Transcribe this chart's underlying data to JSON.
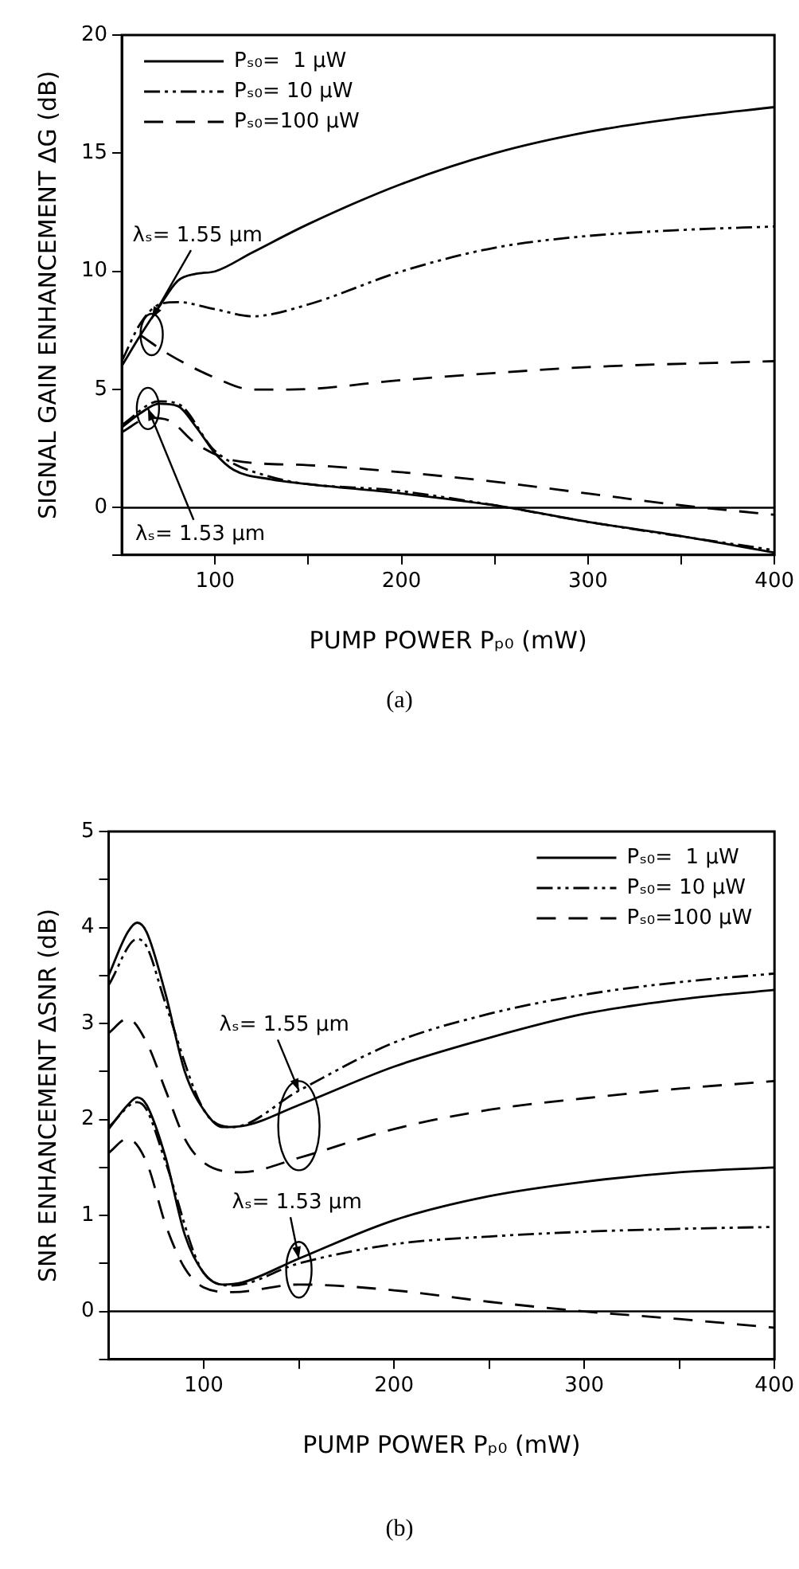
{
  "chart_data": [
    {
      "type": "line",
      "xlabel": "PUMP POWER Pₚ₀ (mW)",
      "ylabel": "SIGNAL GAIN ENHANCEMENT ΔG (dB)",
      "xlim": [
        50,
        400
      ],
      "xticks": [
        100,
        {
          "value": 150,
          "label": null
        },
        200,
        {
          "value": 250,
          "label": null
        },
        300,
        {
          "value": 350,
          "label": null
        },
        400
      ],
      "ylim": [
        -2,
        20
      ],
      "yticks": [
        {
          "value": -2,
          "label": null
        },
        0,
        5,
        10,
        15,
        20
      ],
      "legend": "top left",
      "grid": false,
      "ref_lines": [
        {
          "axis": "y",
          "value": 0,
          "color": "#000000"
        }
      ],
      "annotations": [
        {
          "text": "λₛ= 1.55 μm",
          "x": 66,
          "y": 8.0
        },
        {
          "text": "λₛ= 1.53 μm",
          "x": 64,
          "y": 4.2
        },
        "(a)"
      ],
      "series": [
        {
          "name": "Pₛ₀=  1 μW",
          "color": "#000000",
          "line_style": "solid",
          "x": [
            50,
            60,
            70,
            80,
            90,
            100,
            120,
            150,
            200,
            250,
            300,
            350,
            400
          ],
          "values": [
            6.0,
            7.3,
            8.5,
            9.6,
            9.9,
            10.0,
            10.8,
            12.0,
            13.7,
            15.0,
            15.9,
            16.5,
            16.95
          ]
        },
        {
          "name": "Pₛ₀= 10 μW",
          "color": "#000000",
          "line_style": "dashdot",
          "x": [
            50,
            60,
            70,
            80,
            100,
            120,
            150,
            200,
            250,
            300,
            350,
            400
          ],
          "values": [
            6.2,
            7.8,
            8.6,
            8.7,
            8.4,
            8.1,
            8.6,
            10.0,
            11.0,
            11.5,
            11.75,
            11.9
          ]
        },
        {
          "name": "Pₛ₀=100 μW",
          "color": "#000000",
          "line_style": "dashed",
          "x": [
            60,
            75,
            100,
            120,
            140,
            200,
            250,
            300,
            400
          ],
          "values": [
            7.3,
            6.5,
            5.5,
            5.0,
            5.0,
            5.4,
            5.7,
            5.95,
            6.2
          ]
        },
        {
          "color": "#000000",
          "line_style": "solid",
          "x": [
            50,
            60,
            70,
            80,
            90,
            100,
            110,
            130,
            150,
            200,
            250,
            300,
            350,
            400
          ],
          "values": [
            3.4,
            4.0,
            4.4,
            4.3,
            3.4,
            2.3,
            1.6,
            1.2,
            1.0,
            0.6,
            0.1,
            -0.6,
            -1.2,
            -1.9
          ]
        },
        {
          "color": "#000000",
          "line_style": "dashdot",
          "x": [
            50,
            70,
            80,
            100,
            130,
            200,
            250,
            300,
            400
          ],
          "values": [
            3.5,
            4.5,
            4.4,
            2.4,
            1.3,
            0.7,
            0.1,
            -0.6,
            -1.8
          ]
        },
        {
          "color": "#000000",
          "line_style": "dashed",
          "x": [
            50,
            65,
            75,
            90,
            110,
            150,
            200,
            250,
            300,
            350,
            400
          ],
          "values": [
            3.2,
            3.8,
            3.7,
            2.7,
            2.0,
            1.8,
            1.5,
            1.1,
            0.6,
            0.1,
            -0.3
          ]
        }
      ]
    },
    {
      "type": "line",
      "xlabel": "PUMP POWER Pₚ₀ (mW)",
      "ylabel": "SNR ENHANCEMENT ΔSNR (dB)",
      "xlim": [
        50,
        400
      ],
      "xticks": [
        100,
        {
          "value": 150,
          "label": null
        },
        200,
        {
          "value": 250,
          "label": null
        },
        300,
        {
          "value": 350,
          "label": null
        },
        400
      ],
      "ylim": [
        -0.5,
        5
      ],
      "yticks": [
        {
          "value": -0.5,
          "label": null
        },
        0,
        {
          "value": 0.5,
          "label": null
        },
        1,
        {
          "value": 1.5,
          "label": null
        },
        2,
        {
          "value": 2.5,
          "label": null
        },
        3,
        {
          "value": 3.5,
          "label": null
        },
        4,
        {
          "value": 4.5,
          "label": null
        },
        5
      ],
      "legend": "top right",
      "grid": false,
      "ref_lines": [
        {
          "axis": "y",
          "value": 0,
          "color": "#000000"
        }
      ],
      "annotations": [
        {
          "text": "λₛ= 1.55 μm",
          "x": 150,
          "y": 2.3
        },
        {
          "text": "λₛ= 1.53 μm",
          "x": 150,
          "y": 0.55
        },
        "(b)"
      ],
      "series": [
        {
          "name": "Pₛ₀=  1 μW",
          "color": "#000000",
          "line_style": "solid",
          "x": [
            50,
            60,
            65,
            70,
            80,
            90,
            100,
            110,
            120,
            150,
            200,
            250,
            300,
            350,
            400
          ],
          "values": [
            3.5,
            3.95,
            4.05,
            3.95,
            3.3,
            2.5,
            2.1,
            1.92,
            1.93,
            2.15,
            2.55,
            2.85,
            3.1,
            3.25,
            3.35
          ]
        },
        {
          "name": "Pₛ₀= 10 μW",
          "color": "#000000",
          "line_style": "dashdot",
          "x": [
            50,
            65,
            70,
            80,
            100,
            115,
            150,
            200,
            250,
            300,
            350,
            400
          ],
          "values": [
            3.4,
            3.88,
            3.8,
            3.2,
            2.1,
            1.92,
            2.3,
            2.8,
            3.1,
            3.3,
            3.43,
            3.52
          ]
        },
        {
          "name": "Pₛ₀=100 μW",
          "color": "#000000",
          "line_style": "dashed",
          "x": [
            50,
            60,
            70,
            80,
            90,
            100,
            120,
            150,
            200,
            250,
            300,
            350,
            400
          ],
          "values": [
            2.9,
            3.05,
            2.8,
            2.3,
            1.8,
            1.55,
            1.45,
            1.6,
            1.9,
            2.1,
            2.22,
            2.32,
            2.4
          ]
        },
        {
          "color": "#000000",
          "line_style": "solid",
          "x": [
            50,
            60,
            65,
            70,
            80,
            90,
            100,
            110,
            120,
            150,
            200,
            250,
            300,
            350,
            400
          ],
          "values": [
            1.9,
            2.15,
            2.23,
            2.15,
            1.6,
            0.8,
            0.4,
            0.28,
            0.3,
            0.55,
            0.95,
            1.2,
            1.35,
            1.45,
            1.5
          ]
        },
        {
          "color": "#000000",
          "line_style": "dashdot",
          "x": [
            50,
            65,
            70,
            80,
            100,
            115,
            150,
            200,
            250,
            300,
            350,
            400
          ],
          "values": [
            1.92,
            2.18,
            2.1,
            1.55,
            0.4,
            0.27,
            0.5,
            0.7,
            0.78,
            0.83,
            0.86,
            0.88
          ]
        },
        {
          "color": "#000000",
          "line_style": "dashed",
          "x": [
            50,
            60,
            70,
            80,
            90,
            100,
            115,
            150,
            200,
            250,
            300,
            350,
            400
          ],
          "values": [
            1.65,
            1.8,
            1.55,
            0.9,
            0.45,
            0.25,
            0.2,
            0.28,
            0.22,
            0.1,
            0.0,
            -0.08,
            -0.17
          ]
        }
      ]
    }
  ]
}
